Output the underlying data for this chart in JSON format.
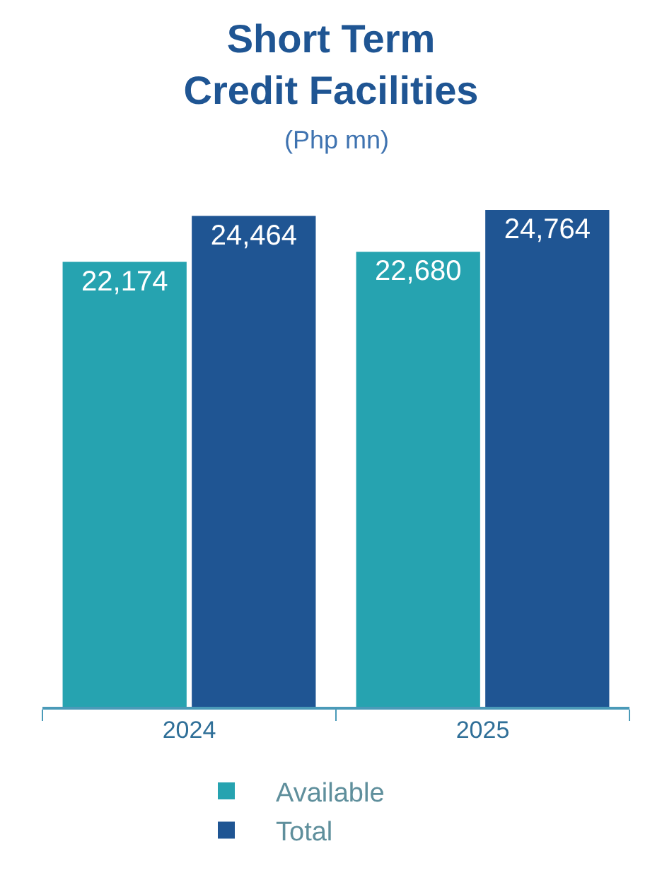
{
  "chart_data": {
    "type": "bar",
    "title": "Short Term\nCredit Facilities",
    "subtitle": "(Php mn)",
    "categories": [
      "2024",
      "2025"
    ],
    "series": [
      {
        "name": "Available",
        "color": "#26a3b0",
        "values": [
          22174,
          22680
        ],
        "value_labels": [
          "22,174",
          "22,680"
        ]
      },
      {
        "name": "Total",
        "color": "#1f5593",
        "values": [
          24464,
          24764
        ],
        "value_labels": [
          "24,464",
          "24,764"
        ]
      }
    ],
    "legend": "bottom",
    "tick_labels": "x"
  }
}
